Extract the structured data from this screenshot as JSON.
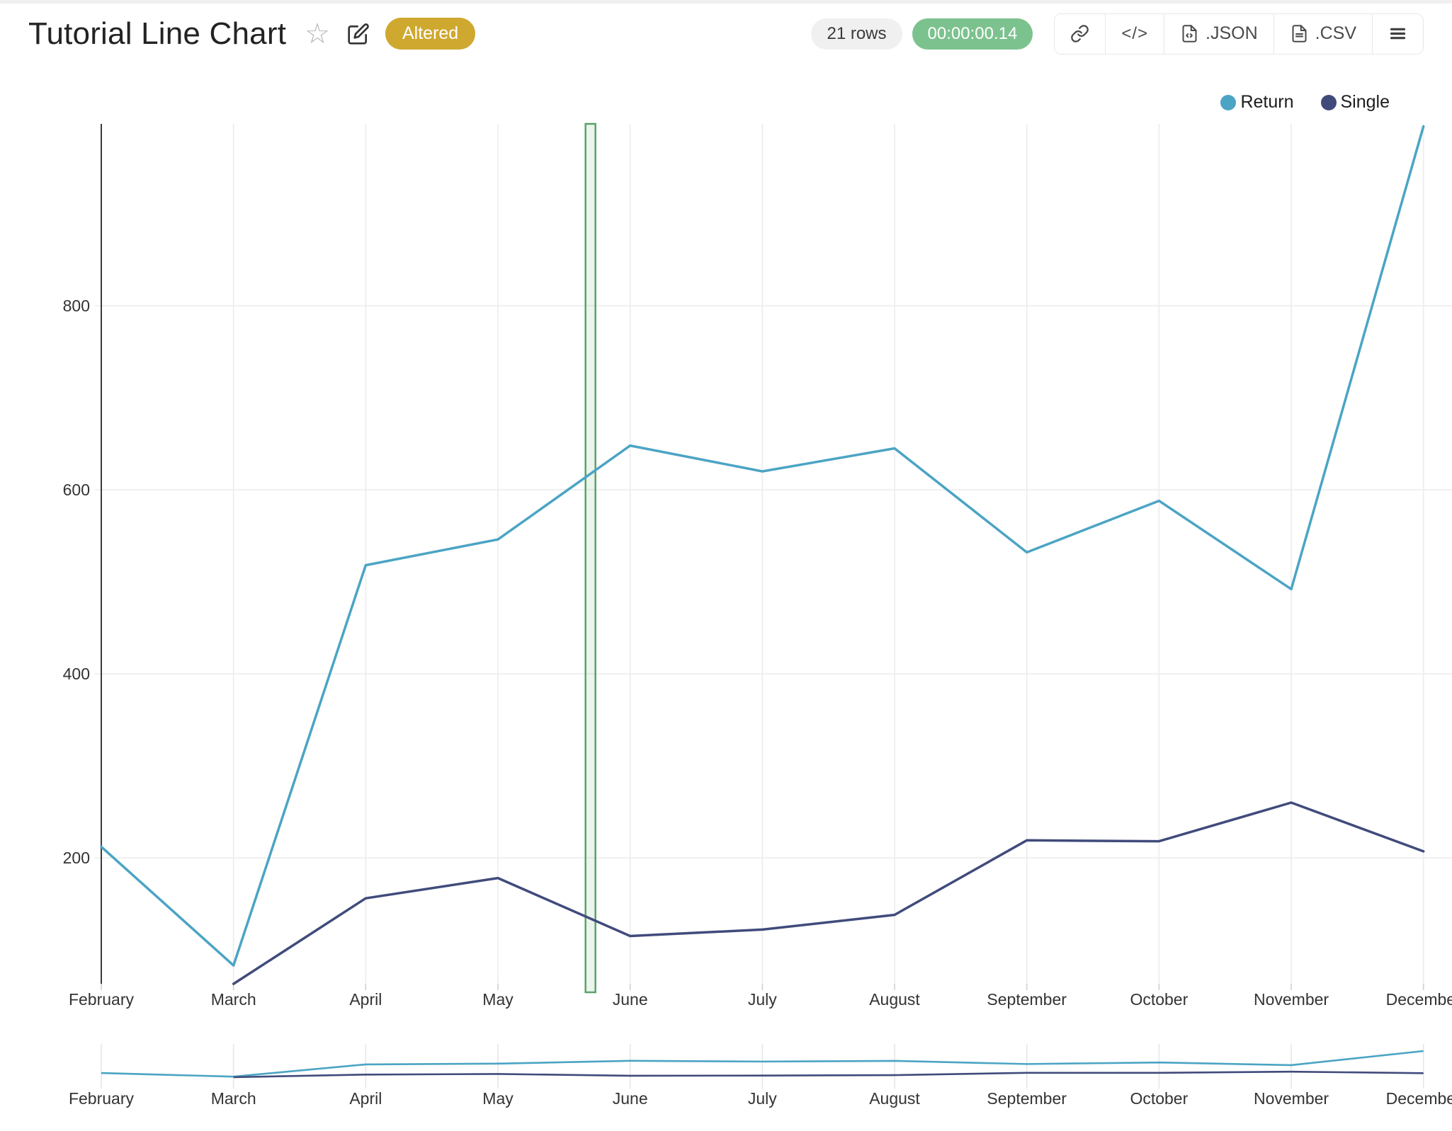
{
  "header": {
    "title": "Tutorial Line Chart",
    "status_badge": "Altered",
    "rows_badge": "21 rows",
    "duration_badge": "00:00:00.14",
    "embed_label": "</>",
    "json_label": ".JSON",
    "csv_label": ".CSV"
  },
  "colors": {
    "return_series": "#4ba4c4",
    "single_series": "#404b7c",
    "badge_gold": "#cfa82f",
    "timer_green": "#7cc28e",
    "grid": "#ececec",
    "axis_line": "#3b3b3b",
    "tick_text": "#333333",
    "band_border": "#5aa268",
    "band_fill": "rgba(90,162,104,0.12)"
  },
  "chart_data": {
    "type": "line",
    "categories": [
      "February",
      "March",
      "April",
      "May",
      "June",
      "July",
      "August",
      "September",
      "October",
      "November",
      "December"
    ],
    "series": [
      {
        "name": "Return",
        "color": "#4ba4c4",
        "values": [
          212,
          83,
          518,
          546,
          648,
          620,
          645,
          532,
          588,
          492,
          995
        ]
      },
      {
        "name": "Single",
        "color": "#404b7c",
        "values": [
          null,
          63,
          156,
          178,
          115,
          122,
          138,
          219,
          218,
          260,
          207
        ]
      }
    ],
    "yticks": [
      200,
      400,
      600,
      800
    ],
    "ylim": [
      63,
      998
    ],
    "grid": true,
    "legend_position": "top-right",
    "annotation": {
      "type": "vertical-band",
      "x_index": 3.7,
      "width": 14
    },
    "rangeslider": true
  }
}
